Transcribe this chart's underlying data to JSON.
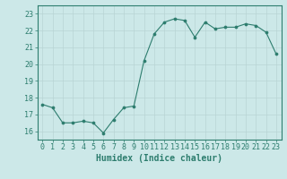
{
  "x": [
    0,
    1,
    2,
    3,
    4,
    5,
    6,
    7,
    8,
    9,
    10,
    11,
    12,
    13,
    14,
    15,
    16,
    17,
    18,
    19,
    20,
    21,
    22,
    23
  ],
  "y": [
    17.6,
    17.4,
    16.5,
    16.5,
    16.6,
    16.5,
    15.9,
    16.7,
    17.4,
    17.5,
    20.2,
    21.8,
    22.5,
    22.7,
    22.6,
    21.6,
    22.5,
    22.1,
    22.2,
    22.2,
    22.4,
    22.3,
    21.9,
    20.6
  ],
  "line_color": "#2d7d6e",
  "marker": "o",
  "marker_size": 2.2,
  "bg_color": "#cce8e8",
  "grid_color": "#b8d4d4",
  "xlabel": "Humidex (Indice chaleur)",
  "ylim": [
    15.5,
    23.5
  ],
  "xlim": [
    -0.5,
    23.5
  ],
  "yticks": [
    16,
    17,
    18,
    19,
    20,
    21,
    22,
    23
  ],
  "xticks": [
    0,
    1,
    2,
    3,
    4,
    5,
    6,
    7,
    8,
    9,
    10,
    11,
    12,
    13,
    14,
    15,
    16,
    17,
    18,
    19,
    20,
    21,
    22,
    23
  ],
  "tick_color": "#2d7d6e",
  "label_color": "#2d7d6e",
  "font_size": 6,
  "xlabel_fontsize": 7
}
